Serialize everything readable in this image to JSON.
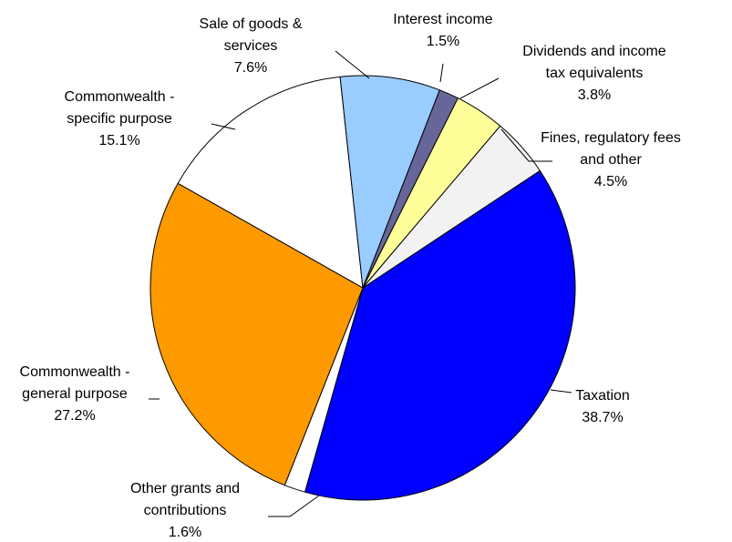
{
  "chart_data": {
    "type": "pie",
    "title": "",
    "slices": [
      {
        "label": [
          "Taxation"
        ],
        "value": 38.7,
        "pct_text": "38.7%",
        "color": "#0000FF"
      },
      {
        "label": [
          "Other grants and",
          "contributions"
        ],
        "value": 1.6,
        "pct_text": "1.6%",
        "color": "#FFFFFF"
      },
      {
        "label": [
          "Commonwealth -",
          "general purpose"
        ],
        "value": 27.2,
        "pct_text": "27.2%",
        "color": "#FF9900"
      },
      {
        "label": [
          "Commonwealth -",
          "specific purpose"
        ],
        "value": 15.1,
        "pct_text": "15.1%",
        "color": "#FFFFFF"
      },
      {
        "label": [
          "Sale of goods &",
          "services"
        ],
        "value": 7.6,
        "pct_text": "7.6%",
        "color": "#99CCFF"
      },
      {
        "label": [
          "Interest income"
        ],
        "value": 1.5,
        "pct_text": "1.5%",
        "color": "#666699"
      },
      {
        "label": [
          "Dividends and income",
          "tax equivalents"
        ],
        "value": 3.8,
        "pct_text": "3.8%",
        "color": "#FFFF99"
      },
      {
        "label": [
          "Fines, regulatory fees",
          "and other"
        ],
        "value": 4.5,
        "pct_text": "4.5%",
        "color": "#F2F2F2"
      }
    ],
    "legend": "none"
  }
}
